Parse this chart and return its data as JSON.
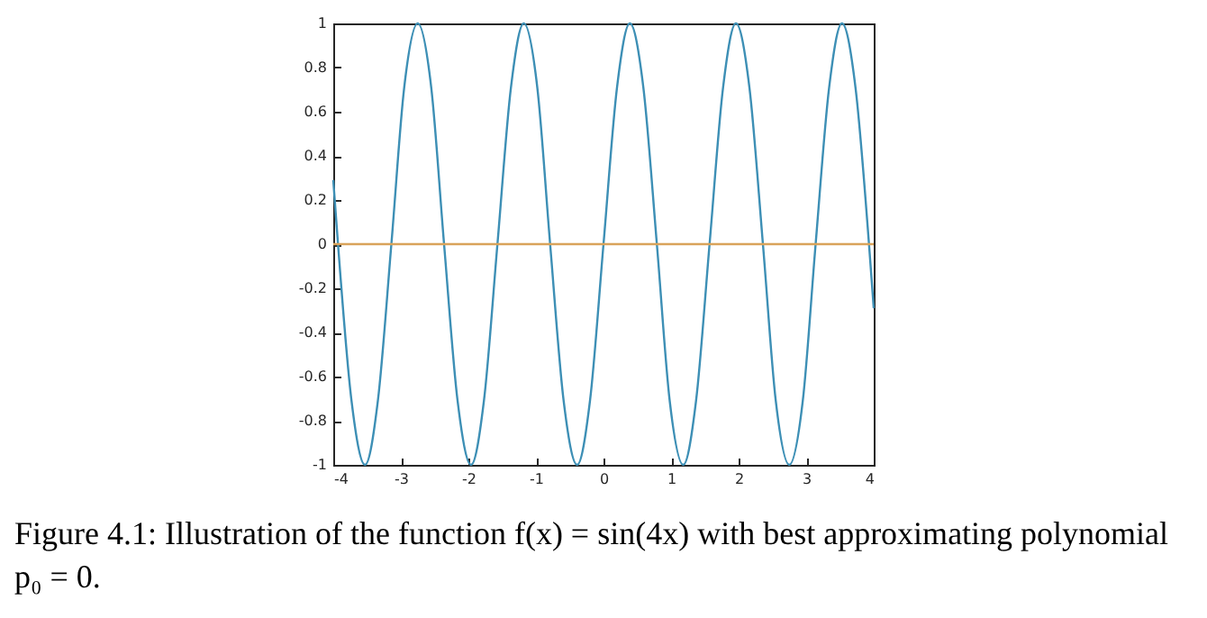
{
  "chart_data": {
    "type": "line",
    "xlim": [
      -4,
      4
    ],
    "xticks": [
      -4,
      -3,
      -2,
      -1,
      0,
      1,
      2,
      3,
      4
    ],
    "ylim": [
      -1,
      1
    ],
    "yticks": [
      -1,
      -0.8,
      -0.6,
      -0.4,
      -0.2,
      0,
      0.2,
      0.4,
      0.6,
      0.8,
      1
    ],
    "grid": false,
    "legend": false,
    "marker": "none",
    "line_style": "solid",
    "series": [
      {
        "color": "#3d8fb5",
        "x": [
          -4,
          -3.93,
          -3.73,
          -3.53,
          -3.34,
          -3.14,
          -2.95,
          -2.75,
          -2.55,
          -2.36,
          -2.16,
          -1.96,
          -1.77,
          -1.57,
          -1.37,
          -1.18,
          -0.98,
          -0.79,
          -0.59,
          -0.39,
          -0.2,
          0,
          0.2,
          0.39,
          0.59,
          0.79,
          0.98,
          1.18,
          1.37,
          1.57,
          1.77,
          1.96,
          2.16,
          2.36,
          2.55,
          2.75,
          2.95,
          3.14,
          3.34,
          3.53,
          3.73,
          3.93,
          4
        ],
        "values": [
          0.29,
          0,
          -0.71,
          -1,
          -0.71,
          0,
          0.71,
          1,
          0.71,
          0,
          -0.71,
          -1,
          -0.71,
          0,
          0.71,
          1,
          0.71,
          0,
          -0.71,
          -1,
          -0.71,
          0,
          0.71,
          1,
          0.71,
          0,
          -0.71,
          -1,
          -0.71,
          0,
          0.71,
          1,
          0.71,
          0,
          -0.71,
          -1,
          -0.71,
          0,
          0.71,
          1,
          0.71,
          0,
          -0.29
        ]
      },
      {
        "color": "#d9a35a",
        "x": [
          -4,
          4
        ],
        "values": [
          0,
          0
        ]
      }
    ],
    "annotations": [
      "Figure 4.1: Illustration of the function f(x) = sin(4x) with best approximating polynomial p₀ = 0."
    ]
  }
}
